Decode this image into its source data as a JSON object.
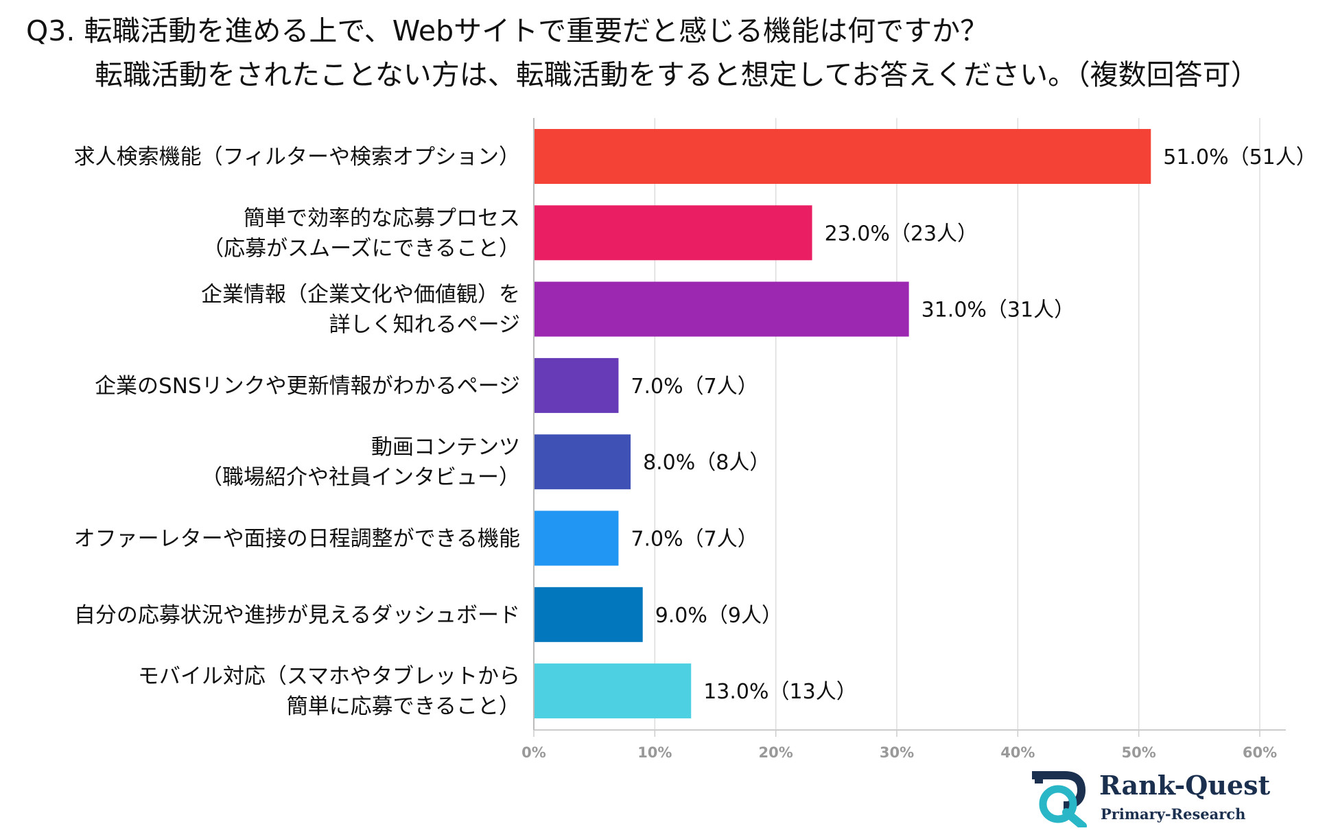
{
  "title": "Q3. 転職活動を進める上で、Webサイトで重要だと感じる機能は何ですか？",
  "subtitle": "転職活動をされたことない方は、転職活動をすると想定してお答えください。（複数回答可）",
  "logo": {
    "name": "Rank-Quest",
    "tagline": "Primary-Research"
  },
  "chart_data": {
    "type": "bar",
    "orientation": "horizontal",
    "categories": [
      [
        "求人検索機能（フィルターや検索オプション）"
      ],
      [
        "簡単で効率的な応募プロセス",
        "（応募がスムーズにできること）"
      ],
      [
        "企業情報（企業文化や価値観）を",
        "詳しく知れるページ"
      ],
      [
        "企業のSNSリンクや更新情報がわかるページ"
      ],
      [
        "動画コンテンツ",
        "（職場紹介や社員インタビュー）"
      ],
      [
        "オファーレターや面接の日程調整ができる機能"
      ],
      [
        "自分の応募状況や進捗が見えるダッシュボード"
      ],
      [
        "モバイル対応（スマホやタブレットから",
        "簡単に応募できること）"
      ]
    ],
    "values": [
      51.0,
      23.0,
      31.0,
      7.0,
      8.0,
      7.0,
      9.0,
      13.0
    ],
    "data_labels": [
      "51.0%（51人）",
      "23.0%（23人）",
      "31.0%（31人）",
      "7.0%（7人）",
      "8.0%（8人）",
      "7.0%（7人）",
      "9.0%（9人）",
      "13.0%（13人）"
    ],
    "colors": [
      "#f44336",
      "#e91e63",
      "#9c27b0",
      "#673ab7",
      "#3f51b5",
      "#2196f3",
      "#0277bd",
      "#4dd0e1"
    ],
    "xlim": [
      0,
      60
    ],
    "xticks": [
      "0%",
      "10%",
      "20%",
      "30%",
      "40%",
      "50%",
      "60%"
    ],
    "grid": true,
    "xlabel": "",
    "ylabel": ""
  }
}
